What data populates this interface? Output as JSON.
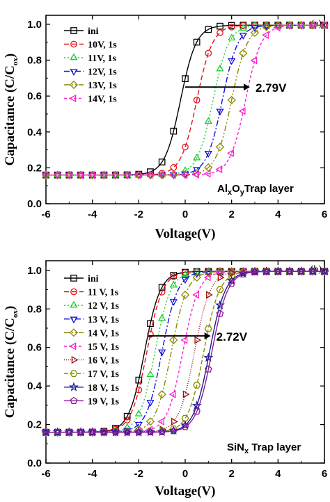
{
  "chart_data": [
    {
      "type": "line",
      "panel_label": "(a)",
      "xlabel": "Voltage(V)",
      "ylabel_main": "Capacitance (C/C",
      "ylabel_sub": "ox",
      "ylabel_end": ")",
      "xlim": [
        -6,
        6
      ],
      "ylim": [
        0.0,
        1.05
      ],
      "xticks": [
        -6,
        -4,
        -2,
        0,
        2,
        4,
        6
      ],
      "yticks": [
        0.0,
        0.2,
        0.4,
        0.6,
        0.8,
        1.0
      ],
      "ytick_labels": [
        "0.0",
        "0.2",
        "0.4",
        "0.6",
        "0.8",
        "1.0"
      ],
      "layer_label_a": "Al",
      "layer_label_sub1": "x",
      "layer_label_b": "O",
      "layer_label_sub2": "y",
      "layer_label_c": "Trap layer",
      "annotation": {
        "text": "2.79V",
        "from_x": 0.0,
        "to_x": 2.79,
        "y": 0.65
      },
      "legend_position": "top-left",
      "series": [
        {
          "name": "ini",
          "vfb": -0.2,
          "color": "#000000",
          "marker": "square",
          "dash": ""
        },
        {
          "name": "10V, 1s",
          "vfb": 0.5,
          "color": "#e8101c",
          "marker": "circle",
          "dash": "7,4"
        },
        {
          "name": "11V, 1s",
          "vfb": 1.2,
          "color": "#16d02a",
          "marker": "triangle-up",
          "dash": "2,3"
        },
        {
          "name": "12V, 1s",
          "vfb": 1.6,
          "color": "#1010e0",
          "marker": "triangle-down",
          "dash": "8,3,2,3"
        },
        {
          "name": "13V, 1s",
          "vfb": 2.0,
          "color": "#8a8a00",
          "marker": "diamond",
          "dash": "8,3,2,3,2,3"
        },
        {
          "name": "14V, 1s",
          "vfb": 2.6,
          "color": "#ff1fd2",
          "marker": "triangle-left",
          "dash": "4,3"
        }
      ]
    },
    {
      "type": "line",
      "panel_label": "(b)",
      "xlabel": "Voltage(V)",
      "ylabel_main": "Capacitance (C/C",
      "ylabel_sub": "ox",
      "ylabel_end": ")",
      "xlim": [
        -6,
        6
      ],
      "ylim": [
        0.0,
        1.05
      ],
      "xticks": [
        -6,
        -4,
        -2,
        0,
        2,
        4,
        6
      ],
      "yticks": [
        0.0,
        0.2,
        0.4,
        0.6,
        0.8,
        1.0
      ],
      "ytick_labels": [
        "0.0",
        "0.2",
        "0.4",
        "0.6",
        "0.8",
        "1.0"
      ],
      "layer_label_a": "SiN",
      "layer_label_sub1": "x",
      "layer_label_c": " Trap layer",
      "annotation": {
        "text": "2.72V",
        "from_x": -1.6,
        "to_x": 1.1,
        "y": 0.66
      },
      "legend_position": "top-left",
      "series": [
        {
          "name": "ini",
          "vfb": -1.75,
          "color": "#000000",
          "marker": "square",
          "dash": ""
        },
        {
          "name": "11 V, 1s",
          "vfb": -1.65,
          "color": "#e8101c",
          "marker": "circle",
          "dash": "7,4"
        },
        {
          "name": "12 V, 1s",
          "vfb": -1.3,
          "color": "#16d02a",
          "marker": "triangle-up",
          "dash": "2,3"
        },
        {
          "name": "13 V, 1s",
          "vfb": -1.0,
          "color": "#1010e0",
          "marker": "triangle-down",
          "dash": "8,3,2,3"
        },
        {
          "name": "14 V, 1s",
          "vfb": -0.6,
          "color": "#8a8a00",
          "marker": "diamond",
          "dash": "8,3,2,3,2,3"
        },
        {
          "name": "15 V, 1s",
          "vfb": -0.1,
          "color": "#ff1fd2",
          "marker": "triangle-left",
          "dash": "4,3"
        },
        {
          "name": "16 V, 1s",
          "vfb": 0.4,
          "color": "#9a0e0e",
          "marker": "triangle-right",
          "dash": "1,2"
        },
        {
          "name": "17 V, 1s",
          "vfb": 0.8,
          "color": "#8a8a00",
          "marker": "hexagon",
          "dash": "6,3"
        },
        {
          "name": "18 V, 1s",
          "vfb": 1.05,
          "color": "#1a1a90",
          "marker": "star",
          "dash": ""
        },
        {
          "name": "19 V, 1s",
          "vfb": 1.15,
          "color": "#8a1aa0",
          "marker": "pentagon",
          "dash": ""
        }
      ]
    }
  ]
}
